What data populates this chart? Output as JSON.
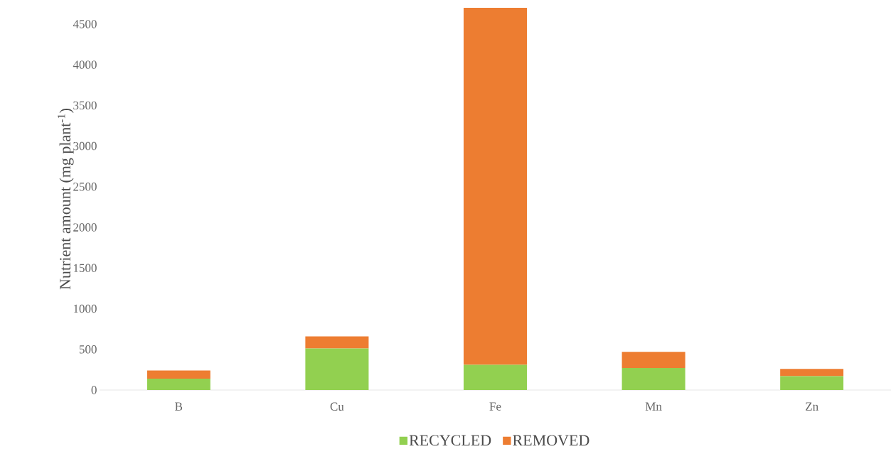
{
  "chart_data": {
    "type": "bar",
    "stacked": true,
    "ylabel": "Nutrient amount (mg plant$^{-1}$)",
    "categories": [
      "B",
      "Cu",
      "Fe",
      "Mn",
      "Zn"
    ],
    "series": [
      {
        "name": "RECYCLED",
        "color": "#92d050",
        "values": [
          140,
          510,
          310,
          270,
          170
        ]
      },
      {
        "name": "REMOVED",
        "color": "#ed7d31",
        "values": [
          100,
          150,
          4390,
          200,
          90
        ]
      }
    ],
    "ylim": [
      0,
      4700
    ],
    "yticks": [
      0,
      500,
      1000,
      1500,
      2000,
      2500,
      3000,
      3500,
      4000,
      4500
    ],
    "grid": false,
    "legend": "bottom"
  }
}
